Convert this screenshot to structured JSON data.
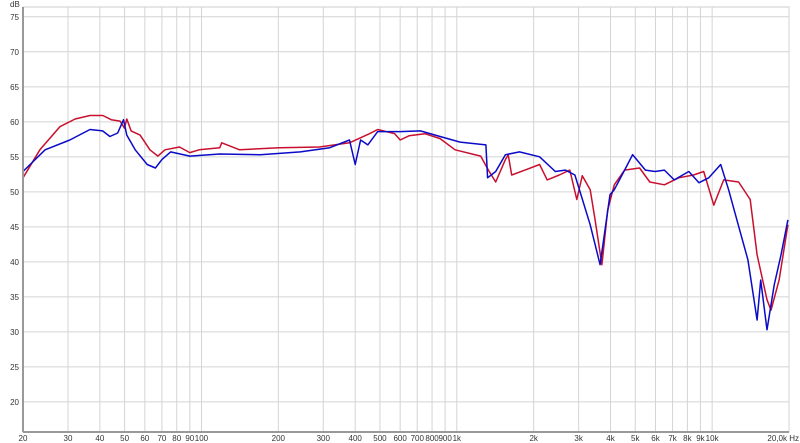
{
  "chart_data": {
    "type": "line",
    "xscale": "log",
    "xlim": [
      20,
      20000
    ],
    "ylim": [
      15.7,
      76.4
    ],
    "ylabel": "dB",
    "xunit": "Hz",
    "grid": true,
    "y_ticks": [
      20,
      25,
      30,
      35,
      40,
      45,
      50,
      55,
      60,
      65,
      70,
      75
    ],
    "x_ticks": [
      {
        "v": 20,
        "label": "20"
      },
      {
        "v": 30,
        "label": "30"
      },
      {
        "v": 40,
        "label": "40"
      },
      {
        "v": 50,
        "label": "50"
      },
      {
        "v": 60,
        "label": "60"
      },
      {
        "v": 70,
        "label": "70"
      },
      {
        "v": 80,
        "label": "80"
      },
      {
        "v": 90,
        "label": "90"
      },
      {
        "v": 100,
        "label": "100"
      },
      {
        "v": 200,
        "label": "200"
      },
      {
        "v": 300,
        "label": "300"
      },
      {
        "v": 400,
        "label": "400"
      },
      {
        "v": 500,
        "label": "500"
      },
      {
        "v": 600,
        "label": "600"
      },
      {
        "v": 700,
        "label": "700"
      },
      {
        "v": 800,
        "label": "800"
      },
      {
        "v": 900,
        "label": "900"
      },
      {
        "v": 1000,
        "label": "1k"
      },
      {
        "v": 2000,
        "label": "2k"
      },
      {
        "v": 3000,
        "label": "3k"
      },
      {
        "v": 4000,
        "label": "4k"
      },
      {
        "v": 5000,
        "label": "5k"
      },
      {
        "v": 6000,
        "label": "6k"
      },
      {
        "v": 7000,
        "label": "7k"
      },
      {
        "v": 8000,
        "label": "8k"
      },
      {
        "v": 9000,
        "label": "9k"
      },
      {
        "v": 10000,
        "label": "10k"
      },
      {
        "v": 20000,
        "label": "20,0k Hz"
      }
    ],
    "series": [
      {
        "color": "#c8102e",
        "x": [
          20,
          23.3,
          27.9,
          32,
          36.6,
          41.1,
          44.3,
          48,
          49.9,
          51,
          53,
          57.5,
          62.8,
          67.5,
          72,
          82,
          90,
          98,
          118,
          120,
          141,
          202,
          290,
          380,
          455,
          490,
          571,
          600,
          650,
          750,
          860,
          985,
          1240,
          1330,
          1420,
          1550,
          1590,
          1640,
          1850,
          2110,
          2260,
          2520,
          2770,
          2950,
          3100,
          3330,
          3480,
          3700,
          3900,
          4140,
          4540,
          5200,
          5700,
          6500,
          7400,
          8450,
          9270,
          10150,
          11100,
          12700,
          14100,
          15000,
          16400,
          17000,
          18300,
          19800
        ],
        "y": [
          52.0,
          56,
          59.3,
          60.4,
          60.9,
          60.9,
          60.3,
          60.1,
          59.1,
          60.4,
          58.7,
          58.1,
          56,
          55.1,
          56,
          56.4,
          55.6,
          56,
          56.3,
          57,
          56,
          56.3,
          56.4,
          57,
          58.3,
          58.9,
          58.3,
          57.4,
          58,
          58.3,
          57.6,
          56,
          55.1,
          53.1,
          51.4,
          54.6,
          55.3,
          52.4,
          53.1,
          53.9,
          51.7,
          52.4,
          53.1,
          48.9,
          52.3,
          50.3,
          46,
          39.6,
          47.4,
          51,
          53.1,
          53.4,
          51.4,
          51,
          52,
          52.4,
          52.9,
          48.1,
          51.7,
          51.4,
          48.9,
          41,
          34.6,
          33.1,
          37.4,
          45.3
        ]
      },
      {
        "color": "#0a0ac8",
        "x": [
          20,
          24.4,
          30.5,
          36.6,
          41,
          43.8,
          47,
          49.5,
          51,
          55,
          61.3,
          66,
          70,
          75.7,
          90,
          118,
          170,
          244,
          318,
          380,
          400,
          420,
          448,
          490,
          600,
          720,
          860,
          1030,
          1300,
          1320,
          1420,
          1550,
          1760,
          2110,
          2430,
          2660,
          2900,
          3330,
          3640,
          3980,
          4140,
          4540,
          4880,
          5480,
          5980,
          6500,
          7100,
          8100,
          8880,
          9700,
          10800,
          11600,
          12500,
          13800,
          15000,
          15500,
          16400,
          17500,
          18600,
          19800
        ],
        "y": [
          52.9,
          56,
          57.4,
          58.9,
          58.7,
          57.9,
          58.4,
          60.3,
          58.1,
          56,
          53.9,
          53.4,
          54.6,
          55.7,
          55.1,
          55.4,
          55.3,
          55.7,
          56.3,
          57.4,
          53.9,
          57.4,
          56.7,
          58.6,
          58.6,
          58.7,
          57.9,
          57.1,
          56.7,
          52,
          52.9,
          55.3,
          55.7,
          55,
          52.9,
          53.1,
          52.4,
          45.3,
          39.6,
          49.6,
          50.3,
          53.1,
          55.3,
          53.1,
          52.9,
          53.1,
          51.7,
          52.9,
          51.3,
          52,
          53.9,
          50.3,
          46,
          40.3,
          31.7,
          37.4,
          30.3,
          36.7,
          41,
          46
        ]
      }
    ]
  }
}
